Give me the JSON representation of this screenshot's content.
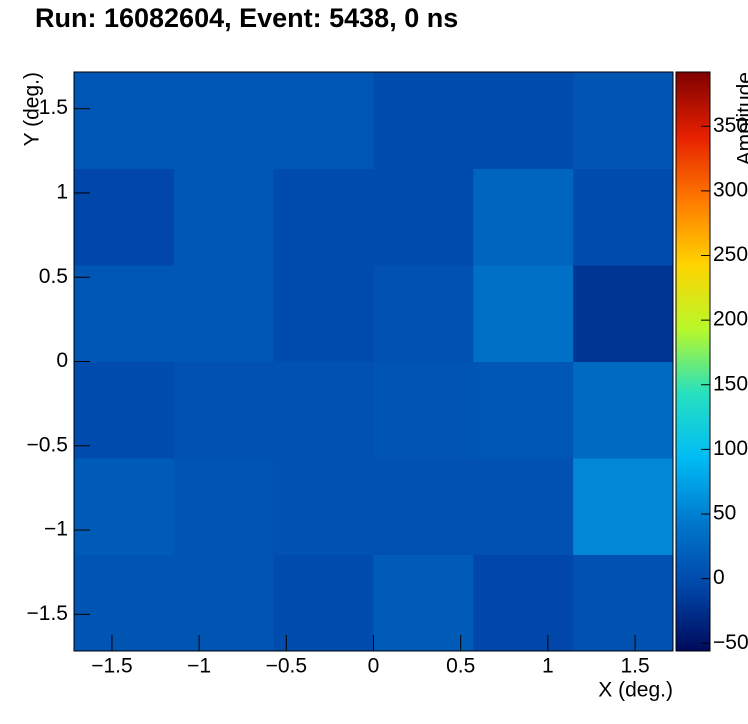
{
  "chart_data": {
    "type": "heatmap",
    "title": "Run: 16082604, Event: 5438, 0 ns",
    "x_label": "X (deg.)",
    "y_label": "Y (deg.)",
    "z_label": "Amplitude",
    "xlim": [
      -1.7175,
      1.7175
    ],
    "ylim": [
      -1.7175,
      1.7175
    ],
    "zlim": [
      -56,
      392
    ],
    "xticks": [
      {
        "value": -1.5,
        "label": "−1.5"
      },
      {
        "value": -1,
        "label": "−1"
      },
      {
        "value": -0.5,
        "label": "−0.5"
      },
      0,
      0.5,
      1,
      1.5
    ],
    "yticks": [
      {
        "value": -1.5,
        "label": "−1.5"
      },
      {
        "value": -1,
        "label": "−1"
      },
      {
        "value": -0.5,
        "label": "−0.5"
      },
      0,
      0.5,
      1,
      1.5
    ],
    "zticks": [
      {
        "value": -50,
        "label": "−50"
      },
      0,
      50,
      100,
      150,
      200,
      250,
      300,
      350
    ],
    "colormap": [
      "#000a5c",
      "#0046a8",
      "#0078cc",
      "#00bcf5",
      "#26e0c0",
      "#b8f82a",
      "#ffd400",
      "#ff7a00",
      "#e62000",
      "#800000"
    ],
    "z": [
      [
        8,
        8,
        0,
        15,
        -5,
        5
      ],
      [
        15,
        8,
        5,
        5,
        5,
        55
      ],
      [
        0,
        5,
        5,
        8,
        10,
        30
      ],
      [
        10,
        10,
        0,
        5,
        35,
        -20
      ],
      [
        -5,
        10,
        0,
        0,
        25,
        0
      ],
      [
        10,
        10,
        10,
        0,
        0,
        8
      ]
    ]
  }
}
